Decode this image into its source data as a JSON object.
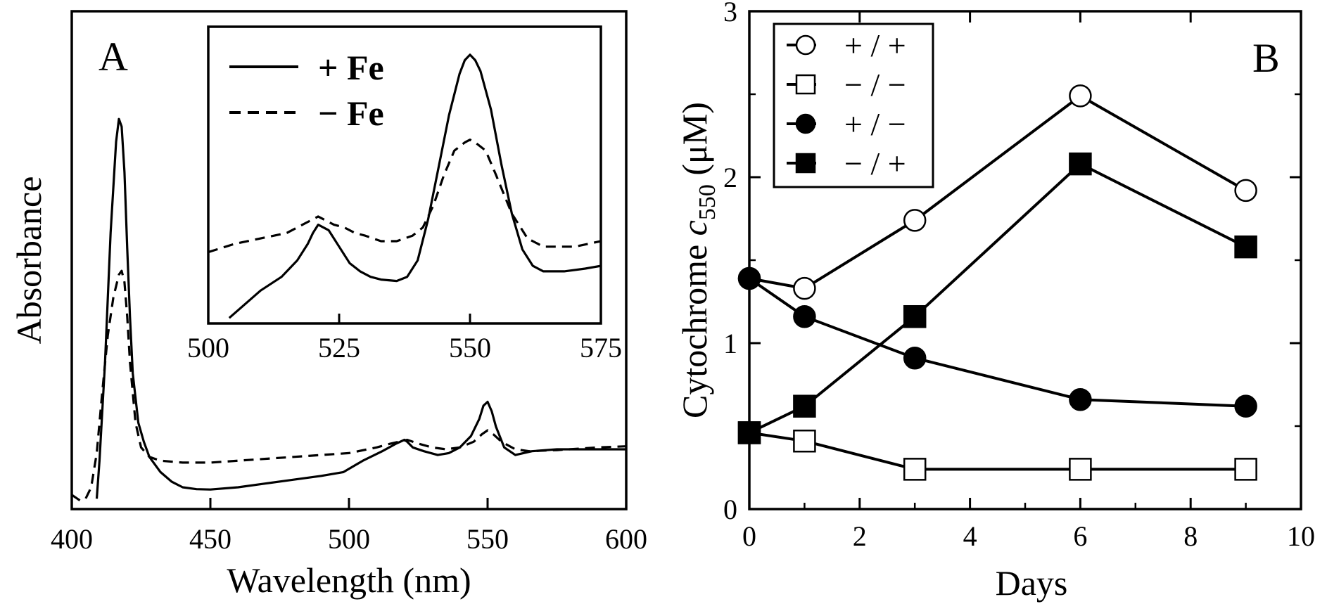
{
  "chart_data": [
    {
      "panel": "A",
      "type": "line",
      "title": "",
      "xlabel": "Wavelength (nm)",
      "ylabel": "Absorbance",
      "xlim": [
        400,
        600
      ],
      "x_ticks": [
        "400",
        "450",
        "500",
        "550",
        "600"
      ],
      "y_ticks": [],
      "grid": false,
      "series": [
        {
          "name": "+ Fe",
          "style": "solid",
          "x": [
            409,
            410,
            412,
            414,
            416,
            417,
            418,
            419,
            420,
            421,
            422,
            424,
            426,
            428,
            432,
            436,
            440,
            445,
            450,
            460,
            470,
            480,
            490,
            498,
            505,
            512,
            517,
            520,
            521,
            523,
            527,
            532,
            536,
            540,
            544,
            547,
            548.5,
            550,
            551.5,
            553,
            556,
            560,
            566,
            575,
            585,
            600
          ],
          "y": [
            0.02,
            0.12,
            0.38,
            0.72,
            0.96,
            1.02,
            1.0,
            0.88,
            0.68,
            0.5,
            0.35,
            0.22,
            0.17,
            0.13,
            0.09,
            0.065,
            0.05,
            0.045,
            0.044,
            0.05,
            0.06,
            0.07,
            0.08,
            0.09,
            0.12,
            0.145,
            0.165,
            0.175,
            0.17,
            0.155,
            0.145,
            0.135,
            0.14,
            0.155,
            0.185,
            0.23,
            0.265,
            0.275,
            0.25,
            0.21,
            0.155,
            0.135,
            0.145,
            0.15,
            0.15,
            0.15
          ]
        },
        {
          "name": "− Fe",
          "style": "dashed",
          "x": [
            400,
            403,
            405,
            407,
            409,
            411,
            413,
            415,
            417,
            418,
            419,
            420,
            421,
            423,
            425,
            428,
            432,
            440,
            450,
            460,
            470,
            480,
            490,
            500,
            510,
            515,
            521,
            525,
            530,
            535,
            540,
            545,
            548,
            550,
            552,
            555,
            560,
            565,
            575,
            590,
            600
          ],
          "y": [
            0.03,
            0.015,
            0.02,
            0.05,
            0.14,
            0.3,
            0.45,
            0.55,
            0.61,
            0.62,
            0.59,
            0.5,
            0.38,
            0.22,
            0.155,
            0.13,
            0.12,
            0.115,
            0.115,
            0.12,
            0.125,
            0.13,
            0.135,
            0.14,
            0.155,
            0.165,
            0.175,
            0.165,
            0.155,
            0.15,
            0.155,
            0.17,
            0.19,
            0.2,
            0.19,
            0.17,
            0.15,
            0.145,
            0.148,
            0.155,
            0.158
          ]
        }
      ]
    },
    {
      "panel": "A-inset",
      "type": "line",
      "xlim": [
        500,
        575
      ],
      "x_ticks": [
        "500",
        "525",
        "550",
        "575"
      ],
      "legend": "top-left",
      "series": [
        {
          "name": "+ Fe",
          "style": "solid",
          "x": [
            504,
            507,
            510,
            514,
            517,
            519,
            520,
            521,
            523,
            525,
            527,
            529,
            531,
            533,
            536,
            538,
            540,
            542,
            544,
            546,
            548,
            549,
            550,
            551,
            552,
            554,
            556,
            558,
            560,
            562,
            564,
            568,
            572,
            575
          ],
          "y": [
            0.02,
            0.07,
            0.12,
            0.17,
            0.23,
            0.29,
            0.33,
            0.36,
            0.34,
            0.28,
            0.22,
            0.19,
            0.17,
            0.16,
            0.155,
            0.17,
            0.23,
            0.38,
            0.57,
            0.76,
            0.91,
            0.96,
            0.98,
            0.96,
            0.92,
            0.78,
            0.58,
            0.4,
            0.27,
            0.21,
            0.19,
            0.19,
            0.2,
            0.21
          ]
        },
        {
          "name": "− Fe",
          "style": "dashed",
          "x": [
            500,
            505,
            510,
            515,
            518,
            520,
            521,
            522,
            524,
            526,
            528,
            530,
            533,
            536,
            539,
            541,
            543,
            545,
            547,
            549,
            550,
            551,
            553,
            555,
            558,
            561,
            564,
            570,
            575
          ],
          "y": [
            0.26,
            0.29,
            0.31,
            0.33,
            0.36,
            0.38,
            0.39,
            0.38,
            0.36,
            0.35,
            0.33,
            0.32,
            0.3,
            0.3,
            0.32,
            0.35,
            0.43,
            0.54,
            0.63,
            0.66,
            0.67,
            0.66,
            0.63,
            0.54,
            0.4,
            0.31,
            0.28,
            0.28,
            0.3
          ]
        }
      ]
    },
    {
      "panel": "B",
      "type": "line",
      "title": "",
      "xlabel": "Days",
      "ylabel_main": "Cytochrome ",
      "ylabel_italic": "c",
      "ylabel_sub": "550",
      "ylabel_unit": " (μM)",
      "xlim": [
        0,
        10
      ],
      "ylim": [
        0,
        3
      ],
      "x_ticks": [
        "0",
        "2",
        "4",
        "6",
        "8",
        "10"
      ],
      "y_ticks": [
        "0",
        "1",
        "2",
        "3"
      ],
      "legend": "top-left",
      "series": [
        {
          "name": "+ / +",
          "marker": "open-circle",
          "x": [
            0,
            1,
            3,
            6,
            9
          ],
          "y": [
            1.39,
            1.33,
            1.74,
            2.49,
            1.92
          ]
        },
        {
          "name": "− / −",
          "marker": "open-square",
          "x": [
            0,
            1,
            3,
            6,
            9
          ],
          "y": [
            0.46,
            0.41,
            0.24,
            0.24,
            0.24
          ]
        },
        {
          "name": "+ / −",
          "marker": "filled-circle",
          "x": [
            0,
            1,
            3,
            6,
            9
          ],
          "y": [
            1.39,
            1.16,
            0.91,
            0.66,
            0.62
          ]
        },
        {
          "name": "− / +",
          "marker": "filled-square",
          "x": [
            0,
            1,
            3,
            6,
            9
          ],
          "y": [
            0.46,
            0.62,
            1.16,
            2.08,
            1.58
          ]
        }
      ]
    }
  ],
  "labels": {
    "panel_a": "A",
    "panel_b": "B",
    "inset_legend": [
      "+ Fe",
      "− Fe"
    ]
  }
}
